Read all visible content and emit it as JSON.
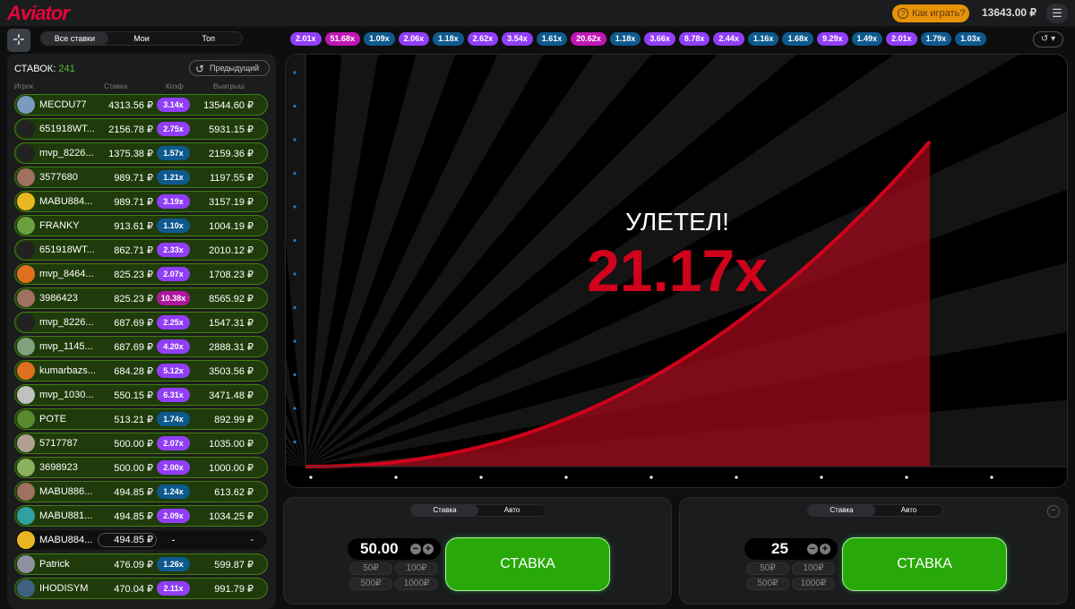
{
  "header": {
    "logo": "Aviator",
    "how_to_play": "Как играть?",
    "balance": "13643.00 ₽",
    "menu_icon": "hamburger-icon"
  },
  "tabs": [
    "Все ставки",
    "Мои",
    "Топ"
  ],
  "bets_panel": {
    "count_label": "СТАВОК:",
    "count": "241",
    "previous_label": "Предыдущий",
    "columns": [
      "Игрок",
      "Ставка",
      "Коэф",
      "Выигрыш"
    ],
    "rows": [
      {
        "player": "MECDU77",
        "bet": "4313.56 ₽",
        "coef": "3.14x",
        "win": "13544.60 ₽",
        "coef_color": "#913ef8",
        "avatar": "#7a9ac0"
      },
      {
        "player": "651918WT...",
        "bet": "2156.78 ₽",
        "coef": "2.75x",
        "win": "5931.15 ₽",
        "coef_color": "#913ef8",
        "avatar": "#222"
      },
      {
        "player": "mvp_8226...",
        "bet": "1375.38 ₽",
        "coef": "1.57x",
        "win": "2159.36 ₽",
        "coef_color": "#0e5a8f",
        "avatar": "#222"
      },
      {
        "player": "3577680",
        "bet": "989.71 ₽",
        "coef": "1.21x",
        "win": "1197.55 ₽",
        "coef_color": "#0e5a8f",
        "avatar": "#a07060"
      },
      {
        "player": "MABU884...",
        "bet": "989.71 ₽",
        "coef": "3.19x",
        "win": "3157.19 ₽",
        "coef_color": "#913ef8",
        "avatar": "#e8b820"
      },
      {
        "player": "FRANKY",
        "bet": "913.61 ₽",
        "coef": "1.10x",
        "win": "1004.19 ₽",
        "coef_color": "#0e5a8f",
        "avatar": "#6aa040"
      },
      {
        "player": "651918WT...",
        "bet": "862.71 ₽",
        "coef": "2.33x",
        "win": "2010.12 ₽",
        "coef_color": "#913ef8",
        "avatar": "#222"
      },
      {
        "player": "mvp_8464...",
        "bet": "825.23 ₽",
        "coef": "2.07x",
        "win": "1708.23 ₽",
        "coef_color": "#913ef8",
        "avatar": "#e07020"
      },
      {
        "player": "3986423",
        "bet": "825.23 ₽",
        "coef": "10.38x",
        "win": "8565.92 ₽",
        "coef_color": "#b0169f",
        "avatar": "#a07060"
      },
      {
        "player": "mvp_8226...",
        "bet": "687.69 ₽",
        "coef": "2.25x",
        "win": "1547.31 ₽",
        "coef_color": "#913ef8",
        "avatar": "#222"
      },
      {
        "player": "mvp_1145...",
        "bet": "687.69 ₽",
        "coef": "4.20x",
        "win": "2888.31 ₽",
        "coef_color": "#913ef8",
        "avatar": "#80a080"
      },
      {
        "player": "kumarbazs...",
        "bet": "684.28 ₽",
        "coef": "5.12x",
        "win": "3503.56 ₽",
        "coef_color": "#913ef8",
        "avatar": "#e07020"
      },
      {
        "player": "mvp_1030...",
        "bet": "550.15 ₽",
        "coef": "6.31x",
        "win": "3471.48 ₽",
        "coef_color": "#913ef8",
        "avatar": "#c0c0c0"
      },
      {
        "player": "POTE",
        "bet": "513.21 ₽",
        "coef": "1.74x",
        "win": "892.99 ₽",
        "coef_color": "#0e5a8f",
        "avatar": "#5a8a30"
      },
      {
        "player": "5717787",
        "bet": "500.00 ₽",
        "coef": "2.07x",
        "win": "1035.00 ₽",
        "coef_color": "#913ef8",
        "avatar": "#b0a090"
      },
      {
        "player": "3698923",
        "bet": "500.00 ₽",
        "coef": "2.00x",
        "win": "1000.00 ₽",
        "coef_color": "#913ef8",
        "avatar": "#8ab060"
      },
      {
        "player": "MABU886...",
        "bet": "494.85 ₽",
        "coef": "1.24x",
        "win": "613.62 ₽",
        "coef_color": "#0e5a8f",
        "avatar": "#a07060"
      },
      {
        "player": "MABU881...",
        "bet": "494.85 ₽",
        "coef": "2.09x",
        "win": "1034.25 ₽",
        "coef_color": "#913ef8",
        "avatar": "#30a0a0"
      },
      {
        "player": "MABU884...",
        "bet": "494.85 ₽",
        "coef": "-",
        "win": "-",
        "coef_color": "",
        "avatar": "#e8b820",
        "pending": true
      },
      {
        "player": "Patrick",
        "bet": "476.09 ₽",
        "coef": "1.26x",
        "win": "599.87 ₽",
        "coef_color": "#0e5a8f",
        "avatar": "#9090a0"
      },
      {
        "player": "IHODISYM",
        "bet": "470.04 ₽",
        "coef": "2.11x",
        "win": "991.79 ₽",
        "coef_color": "#913ef8",
        "avatar": "#406080"
      }
    ]
  },
  "history": [
    {
      "v": "2.01x",
      "c": "#913ef8"
    },
    {
      "v": "51.68x",
      "c": "#c017b4"
    },
    {
      "v": "1.09x",
      "c": "#0e5a8f"
    },
    {
      "v": "2.06x",
      "c": "#913ef8"
    },
    {
      "v": "1.18x",
      "c": "#0e5a8f"
    },
    {
      "v": "2.62x",
      "c": "#913ef8"
    },
    {
      "v": "3.54x",
      "c": "#913ef8"
    },
    {
      "v": "1.61x",
      "c": "#0e5a8f"
    },
    {
      "v": "20.62x",
      "c": "#c017b4"
    },
    {
      "v": "1.18x",
      "c": "#0e5a8f"
    },
    {
      "v": "3.66x",
      "c": "#913ef8"
    },
    {
      "v": "8.78x",
      "c": "#913ef8"
    },
    {
      "v": "2.44x",
      "c": "#913ef8"
    },
    {
      "v": "1.16x",
      "c": "#0e5a8f"
    },
    {
      "v": "1.68x",
      "c": "#0e5a8f"
    },
    {
      "v": "9.29x",
      "c": "#913ef8"
    },
    {
      "v": "1.49x",
      "c": "#0e5a8f"
    },
    {
      "v": "2.01x",
      "c": "#913ef8"
    },
    {
      "v": "1.79x",
      "c": "#0e5a8f"
    },
    {
      "v": "1.03x",
      "c": "#0e5a8f"
    }
  ],
  "game": {
    "status": "УЛЕТЕЛ!",
    "multiplier": "21.17x",
    "accent": "#d0021b"
  },
  "bet_panels": [
    {
      "tabs": [
        "Ставка",
        "Авто"
      ],
      "amount": "50.00",
      "quick": [
        "50₽",
        "100₽",
        "500₽",
        "1000₽"
      ],
      "button": "СТАВКА"
    },
    {
      "tabs": [
        "Ставка",
        "Авто"
      ],
      "amount": "25",
      "quick": [
        "50₽",
        "100₽",
        "500₽",
        "1000₽"
      ],
      "button": "СТАВКА"
    }
  ]
}
